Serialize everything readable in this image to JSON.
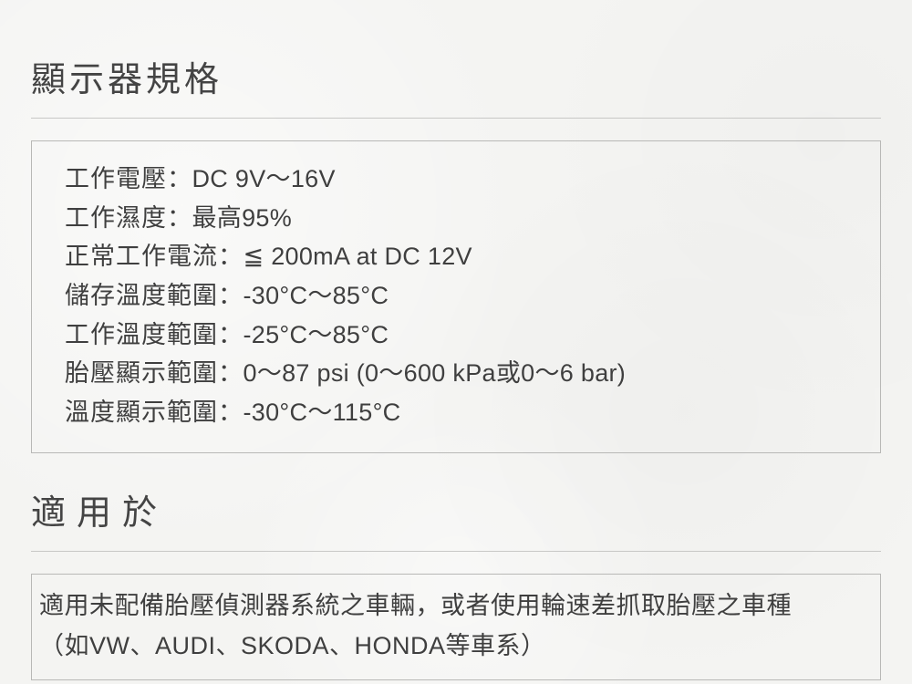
{
  "section1": {
    "title": "顯示器規格",
    "specs": [
      {
        "label": "工作電壓",
        "value": "DC 9V～16V"
      },
      {
        "label": "工作濕度",
        "value": "最高95%"
      },
      {
        "label": "正常工作電流",
        "value": "≦ 200mA at DC 12V"
      },
      {
        "label": "儲存溫度範圍",
        "value": "-30°C～85°C"
      },
      {
        "label": "工作溫度範圍",
        "value": "-25°C～85°C"
      },
      {
        "label": "胎壓顯示範圍",
        "value": "0～87 psi (0～600 kPa或0～6 bar)"
      },
      {
        "label": "溫度顯示範圍",
        "value": "-30°C～115°C"
      }
    ],
    "separator": "："
  },
  "section2": {
    "title": "適用於",
    "line1": "適用未配備胎壓偵測器系統之車輛，或者使用輪速差抓取胎壓之車種",
    "line2": "（如VW、AUDI、SKODA、HONDA等車系）"
  },
  "style": {
    "background_color": "#f4f4f2",
    "text_color": "#3a3a3a",
    "border_color": "#b8b8b6",
    "divider_color": "#c8c8c6",
    "heading_fontsize": 38,
    "body_fontsize": 27,
    "font_weight": 300
  }
}
